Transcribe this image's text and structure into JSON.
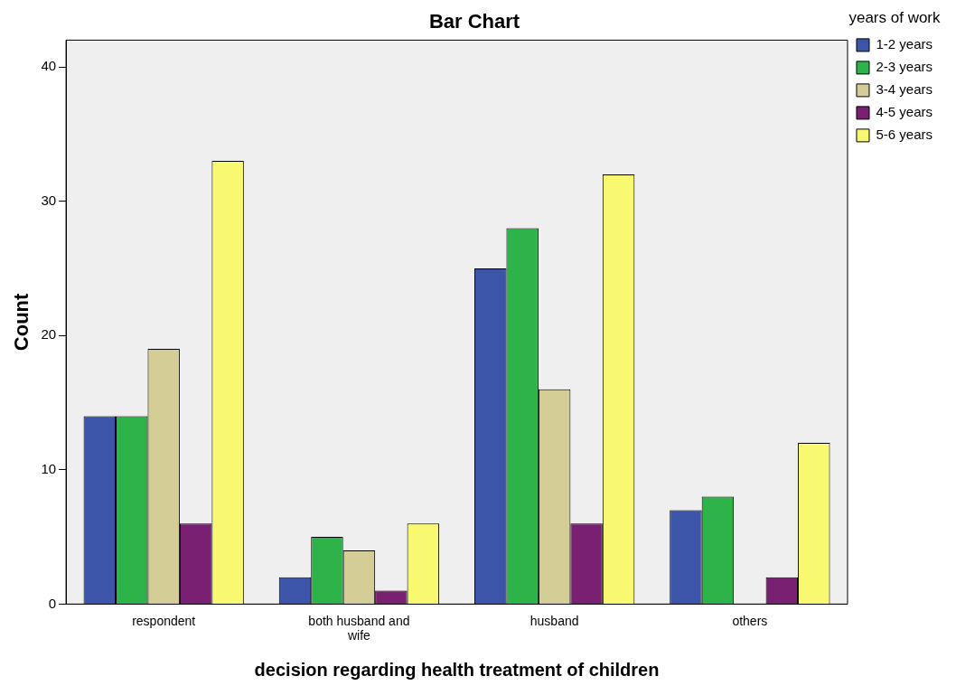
{
  "chart_data": {
    "type": "bar",
    "title": "Bar Chart",
    "xlabel": "decision regarding health treatment of children",
    "ylabel": "Count",
    "legend_title": "years of work",
    "categories": [
      "respondent",
      "both husband and wife",
      "husband",
      "others"
    ],
    "series": [
      {
        "name": "1-2 years",
        "color": "#3d55a8",
        "values": [
          14,
          2,
          25,
          7
        ]
      },
      {
        "name": "2-3 years",
        "color": "#2db34a",
        "values": [
          14,
          5,
          28,
          8
        ]
      },
      {
        "name": "3-4 years",
        "color": "#d4cd96",
        "values": [
          19,
          4,
          16,
          0
        ]
      },
      {
        "name": "4-5 years",
        "color": "#7a2072",
        "values": [
          6,
          1,
          6,
          2
        ]
      },
      {
        "name": "5-6 years",
        "color": "#f9f871",
        "values": [
          33,
          6,
          32,
          12
        ]
      }
    ],
    "ylim": [
      0,
      42
    ],
    "yticks": [
      0,
      10,
      20,
      30,
      40
    ],
    "grid": false,
    "legend": "top right"
  }
}
